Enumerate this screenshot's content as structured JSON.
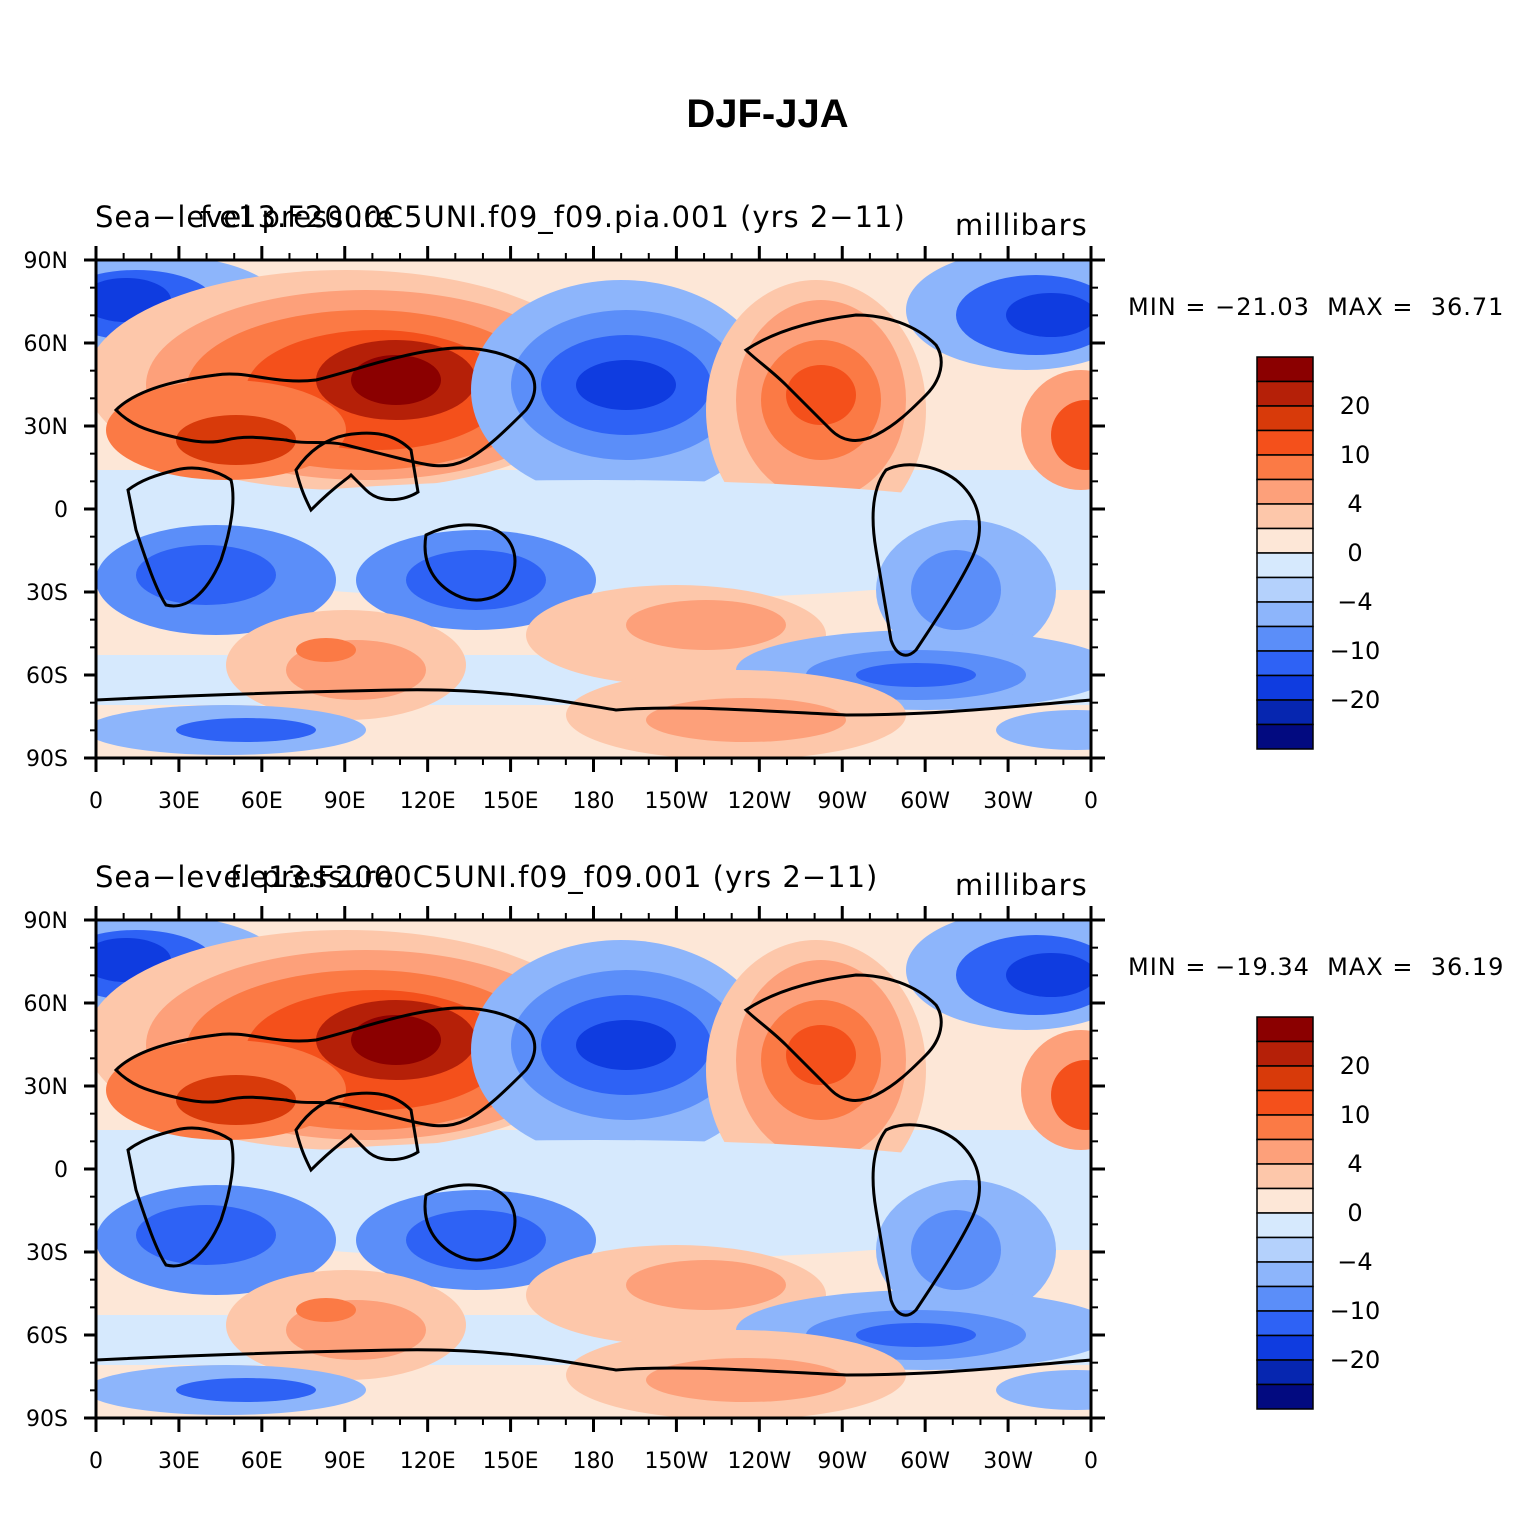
{
  "title": "DJF-JJA",
  "colorbar": {
    "colors": [
      "#8b0000",
      "#b52008",
      "#d83a0a",
      "#f4501b",
      "#fb7a45",
      "#fda07a",
      "#fdc7aa",
      "#fde7d7",
      "#d6e9fd",
      "#b4d1fc",
      "#8db5fb",
      "#5b8ef9",
      "#2e62f5",
      "#0f3ce0",
      "#0626b0",
      "#020a80"
    ],
    "labels": [
      "20",
      "10",
      "4",
      "0",
      "−4",
      "−10",
      "−20"
    ]
  },
  "axes": {
    "y_ticks": [
      "90N",
      "60N",
      "30N",
      "0",
      "30S",
      "60S",
      "90S"
    ],
    "x_ticks": [
      "0",
      "30E",
      "60E",
      "90E",
      "120E",
      "150E",
      "180",
      "150W",
      "120W",
      "90W",
      "60W",
      "30W",
      "0"
    ]
  },
  "panels": [
    {
      "left_title": "Sea−level pressure",
      "center_title": "f.e13.F2000C5UNI.f09_f09.pia.001 (yrs 2−11)",
      "units": "millibars",
      "min_max": "MIN = −21.03  MAX =  36.71"
    },
    {
      "left_title": "Sea−level pressure",
      "center_title": "f.e13.F2000C5UNI.f09_f09.001 (yrs 2−11)",
      "units": "millibars",
      "min_max": "MIN = −19.34  MAX =  36.19"
    }
  ]
}
